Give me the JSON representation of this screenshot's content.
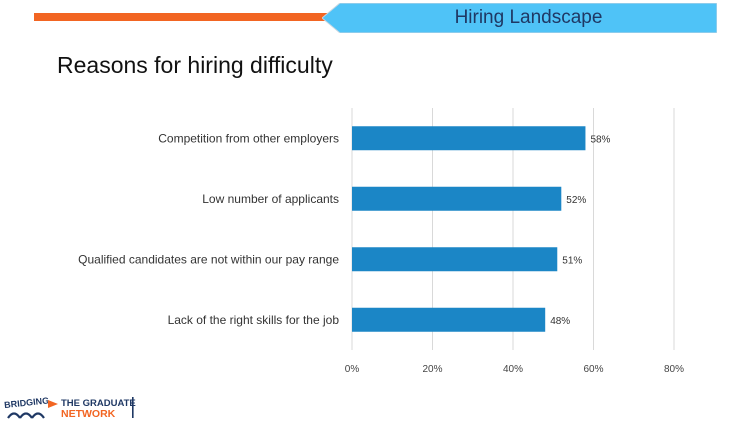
{
  "header": {
    "title": "Hiring Landscape"
  },
  "slide": {
    "title": "Reasons for hiring difficulty"
  },
  "logo": {
    "left_text": "BRIDGING",
    "right_line1": "THE GRADUATE",
    "right_line2": "NETWORK"
  },
  "colors": {
    "accent_orange": "#f26522",
    "banner_blue": "#4fc3f7",
    "bar_blue": "#1b86c6",
    "title_navy": "#1f3864"
  },
  "chart_data": {
    "type": "bar",
    "orientation": "horizontal",
    "title": "Reasons for hiring difficulty",
    "categories": [
      "Competition from other employers",
      "Low number of applicants",
      "Qualified candidates are not within our pay range",
      "Lack of  the right skills for the job"
    ],
    "values": [
      58,
      52,
      51,
      48
    ],
    "value_labels": [
      "58%",
      "52%",
      "51%",
      "48%"
    ],
    "xlim": [
      0,
      80
    ],
    "xticks": [
      0,
      20,
      40,
      60,
      80
    ],
    "xtick_labels": [
      "0%",
      "20%",
      "40%",
      "60%",
      "80%"
    ],
    "grid": true,
    "legend": "none"
  }
}
